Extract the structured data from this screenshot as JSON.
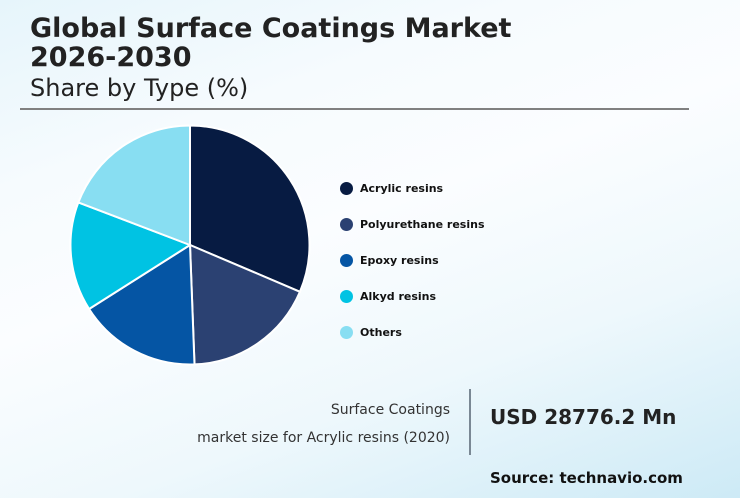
{
  "header": {
    "title_line1": "Global Surface Coatings Market",
    "title_line2": "2026-2030",
    "subtitle": "Share by Type (%)"
  },
  "chart_data": {
    "type": "pie",
    "title": "Global Surface Coatings Market 2026-2030",
    "subtitle": "Share by Type (%)",
    "categories": [
      "Acrylic resins",
      "Polyurethane resins",
      "Epoxy resins",
      "Alkyd resins",
      "Others"
    ],
    "values": [
      31.4,
      18.0,
      16.6,
      14.8,
      19.2
    ],
    "colors": [
      "#071b42",
      "#2b4172",
      "#0555a4",
      "#00c3e3",
      "#88def2"
    ],
    "start_angle": "top, clockwise",
    "legend_position": "right"
  },
  "legend": {
    "items": [
      {
        "label": "Acrylic resins",
        "color": "#071b42"
      },
      {
        "label": "Polyurethane resins",
        "color": "#2b4172"
      },
      {
        "label": "Epoxy resins",
        "color": "#0555a4"
      },
      {
        "label": "Alkyd resins",
        "color": "#00c3e3"
      },
      {
        "label": "Others",
        "color": "#88def2"
      }
    ]
  },
  "footer": {
    "caption_line1": "Surface Coatings",
    "caption_line2": "market size for Acrylic resins (2020)",
    "value": "USD 28776.2 Mn",
    "source": "Source: technavio.com"
  }
}
